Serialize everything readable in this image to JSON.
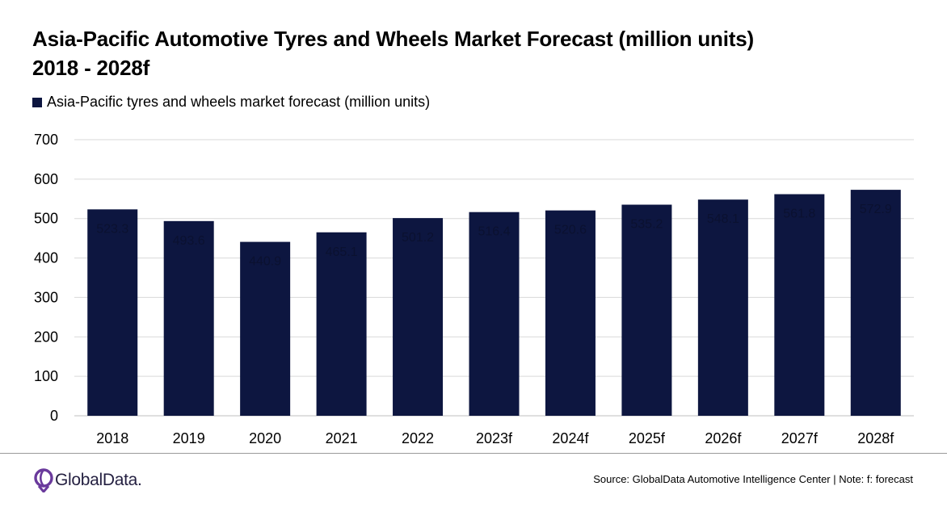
{
  "title_line1": "Asia-Pacific Automotive Tyres and Wheels Market Forecast (million units)",
  "title_line2": "2018 - 2028f",
  "legend_label": "Asia-Pacific tyres and wheels market forecast (million units)",
  "logo_text": "GlobalData.",
  "source_text": "Source: GlobalData Automotive Intelligence Center | Note: f: forecast",
  "colors": {
    "bar": "#0d1640",
    "grid": "#d9d9d9",
    "axis": "#bfbfbf"
  },
  "chart_data": {
    "type": "bar",
    "title": "Asia-Pacific Automotive Tyres and Wheels Market Forecast (million units) 2018 - 2028f",
    "xlabel": "",
    "ylabel": "",
    "ylim": [
      0,
      700
    ],
    "yticks": [
      0,
      100,
      200,
      300,
      400,
      500,
      600,
      700
    ],
    "grid": true,
    "legend_position": "top-left",
    "categories": [
      "2018",
      "2019",
      "2020",
      "2021",
      "2022",
      "2023f",
      "2024f",
      "2025f",
      "2026f",
      "2027f",
      "2028f"
    ],
    "series": [
      {
        "name": "Asia-Pacific tyres and wheels market forecast (million units)",
        "values": [
          523.3,
          493.6,
          440.9,
          465.1,
          501.2,
          516.4,
          520.6,
          535.2,
          548.1,
          561.8,
          572.9
        ]
      }
    ]
  }
}
